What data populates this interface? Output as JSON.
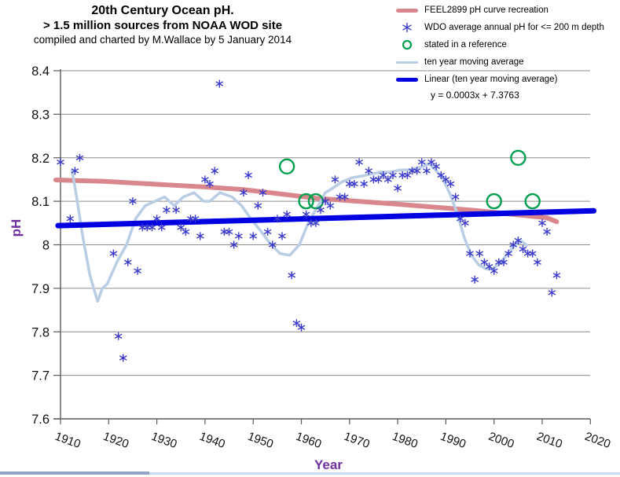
{
  "header": {
    "title_line1": "20th Century Ocean pH.",
    "title_line2": "> 1.5 million sources from NOAA WOD site",
    "title_line3": "compiled and charted by M.Wallace by 5 January 2014"
  },
  "legend": {
    "items": [
      {
        "label": "FEEL2899 pH curve recreation",
        "marker": "feel-line"
      },
      {
        "label": "WDO average annual pH for <= 200 m depth",
        "marker": "wdo-asterisk"
      },
      {
        "label": "stated in a reference",
        "marker": "reference-circle"
      },
      {
        "label": "ten year moving average",
        "marker": "ma-line"
      },
      {
        "label": "Linear (ten year moving average)",
        "marker": "trend-line"
      }
    ]
  },
  "colors": {
    "feel_line": "#D9878D",
    "scatter": "#3A3ACD",
    "reference_circle": "#00A04E",
    "moving_average": "#B9CDE5",
    "trend": "#0000E0",
    "axis_title": "#7030A0",
    "gridline": "#8C8C8C",
    "axis": "#5A5A5A",
    "bottom_bar_left": "#8FA5C2",
    "bottom_bar_right": "#C9DAF2"
  },
  "chart_data": {
    "type": "scatter",
    "title": "20th Century Ocean pH.",
    "xlabel": "Year",
    "ylabel": "pH",
    "xlim": [
      1905,
      2021
    ],
    "ylim": [
      7.6,
      8.4
    ],
    "grid": true,
    "legend_position": "top-right",
    "x_ticks": [
      "1910",
      "1920",
      "1930",
      "1940",
      "1950",
      "1960",
      "1970",
      "1980",
      "1990",
      "2000",
      "2010",
      "2020"
    ],
    "y_ticks": [
      "8.4",
      "8.3",
      "8.2",
      "8.1",
      "8",
      "7.9",
      "7.8",
      "7.7",
      "7.6"
    ],
    "trend_equation": "y = 0.0003x + 7.3763",
    "series": [
      {
        "id": "feel-curve",
        "name": "FEEL2899 pH curve recreation",
        "type": "line",
        "width": 6,
        "points": [
          [
            1909,
            8.149
          ],
          [
            1919,
            8.146
          ],
          [
            1930,
            8.139
          ],
          [
            1940,
            8.133
          ],
          [
            1948,
            8.127
          ],
          [
            1963,
            8.107
          ],
          [
            1979,
            8.094
          ],
          [
            1996,
            8.079
          ],
          [
            2011,
            8.062
          ],
          [
            2013,
            8.053
          ]
        ]
      },
      {
        "id": "wdo-scatter",
        "name": "WDO average annual pH for <= 200 m depth",
        "type": "scatter-asterisk",
        "points": [
          [
            1910,
            8.19
          ],
          [
            1912,
            8.06
          ],
          [
            1913,
            8.17
          ],
          [
            1914,
            8.2
          ],
          [
            1921,
            7.98
          ],
          [
            1922,
            7.79
          ],
          [
            1923,
            7.74
          ],
          [
            1924,
            7.96
          ],
          [
            1925,
            8.1
          ],
          [
            1926,
            7.94
          ],
          [
            1927,
            8.04
          ],
          [
            1928,
            8.04
          ],
          [
            1929,
            8.04
          ],
          [
            1930,
            8.06
          ],
          [
            1931,
            8.04
          ],
          [
            1932,
            8.08
          ],
          [
            1934,
            8.08
          ],
          [
            1935,
            8.04
          ],
          [
            1936,
            8.03
          ],
          [
            1937,
            8.06
          ],
          [
            1938,
            8.06
          ],
          [
            1939,
            8.02
          ],
          [
            1940,
            8.15
          ],
          [
            1941,
            8.14
          ],
          [
            1942,
            8.17
          ],
          [
            1943,
            8.37
          ],
          [
            1944,
            8.03
          ],
          [
            1945,
            8.03
          ],
          [
            1946,
            8.0
          ],
          [
            1947,
            8.02
          ],
          [
            1948,
            8.12
          ],
          [
            1949,
            8.16
          ],
          [
            1950,
            8.02
          ],
          [
            1951,
            8.09
          ],
          [
            1952,
            8.12
          ],
          [
            1953,
            8.03
          ],
          [
            1954,
            8.0
          ],
          [
            1955,
            8.06
          ],
          [
            1956,
            8.02
          ],
          [
            1957,
            8.07
          ],
          [
            1958,
            7.93
          ],
          [
            1959,
            7.82
          ],
          [
            1960,
            7.81
          ],
          [
            1961,
            8.07
          ],
          [
            1962,
            8.05
          ],
          [
            1963,
            8.05
          ],
          [
            1964,
            8.08
          ],
          [
            1965,
            8.1
          ],
          [
            1966,
            8.09
          ],
          [
            1967,
            8.15
          ],
          [
            1968,
            8.11
          ],
          [
            1969,
            8.11
          ],
          [
            1970,
            8.14
          ],
          [
            1971,
            8.14
          ],
          [
            1972,
            8.19
          ],
          [
            1973,
            8.14
          ],
          [
            1974,
            8.17
          ],
          [
            1975,
            8.15
          ],
          [
            1976,
            8.15
          ],
          [
            1977,
            8.16
          ],
          [
            1978,
            8.15
          ],
          [
            1979,
            8.16
          ],
          [
            1980,
            8.13
          ],
          [
            1981,
            8.16
          ],
          [
            1982,
            8.16
          ],
          [
            1983,
            8.17
          ],
          [
            1984,
            8.17
          ],
          [
            1985,
            8.19
          ],
          [
            1986,
            8.17
          ],
          [
            1987,
            8.19
          ],
          [
            1988,
            8.18
          ],
          [
            1989,
            8.16
          ],
          [
            1990,
            8.15
          ],
          [
            1991,
            8.14
          ],
          [
            1992,
            8.11
          ],
          [
            1993,
            8.06
          ],
          [
            1994,
            8.05
          ],
          [
            1995,
            7.98
          ],
          [
            1996,
            7.92
          ],
          [
            1997,
            7.98
          ],
          [
            1998,
            7.96
          ],
          [
            1999,
            7.95
          ],
          [
            2000,
            7.94
          ],
          [
            2001,
            7.96
          ],
          [
            2002,
            7.96
          ],
          [
            2003,
            7.98
          ],
          [
            2004,
            8.0
          ],
          [
            2005,
            8.01
          ],
          [
            2006,
            7.99
          ],
          [
            2007,
            7.98
          ],
          [
            2008,
            7.98
          ],
          [
            2009,
            7.96
          ],
          [
            2010,
            8.05
          ],
          [
            2011,
            8.03
          ],
          [
            2012,
            7.89
          ],
          [
            2013,
            7.93
          ]
        ]
      },
      {
        "id": "reference-circles",
        "name": "stated in a reference",
        "type": "scatter-circle",
        "points": [
          [
            1957,
            8.18
          ],
          [
            1961,
            8.1
          ],
          [
            1963,
            8.1
          ],
          [
            2000,
            8.1
          ],
          [
            2005,
            8.2
          ],
          [
            2008,
            8.1
          ]
        ]
      },
      {
        "id": "moving-average",
        "name": "ten year moving average",
        "type": "line",
        "width": 3.5,
        "points": [
          [
            1912.4,
            8.17
          ],
          [
            1913.2,
            8.12
          ],
          [
            1914.6,
            8.02
          ],
          [
            1916.1,
            7.93
          ],
          [
            1917.7,
            7.87
          ],
          [
            1918.7,
            7.9
          ],
          [
            1919.7,
            7.91
          ],
          [
            1921.7,
            7.96
          ],
          [
            1923.7,
            8.0
          ],
          [
            1925.6,
            8.06
          ],
          [
            1927.6,
            8.09
          ],
          [
            1929.6,
            8.1
          ],
          [
            1931.6,
            8.11
          ],
          [
            1933.6,
            8.09
          ],
          [
            1935.5,
            8.11
          ],
          [
            1937.7,
            8.12
          ],
          [
            1939.7,
            8.1
          ],
          [
            1941.0,
            8.1
          ],
          [
            1943.1,
            8.12
          ],
          [
            1945.6,
            8.11
          ],
          [
            1947.6,
            8.09
          ],
          [
            1949.5,
            8.06
          ],
          [
            1951.7,
            8.03
          ],
          [
            1953.7,
            8.0
          ],
          [
            1955.6,
            7.98
          ],
          [
            1957.6,
            7.976
          ],
          [
            1959.6,
            8.0
          ],
          [
            1961.6,
            8.055
          ],
          [
            1963.5,
            8.09
          ],
          [
            1965.0,
            8.12
          ],
          [
            1966.5,
            8.13
          ],
          [
            1968.5,
            8.145
          ],
          [
            1970.5,
            8.154
          ],
          [
            1972.6,
            8.158
          ],
          [
            1974.6,
            8.163
          ],
          [
            1976.6,
            8.167
          ],
          [
            1978.5,
            8.167
          ],
          [
            1980.5,
            8.172
          ],
          [
            1982.5,
            8.172
          ],
          [
            1984.0,
            8.177
          ],
          [
            1985.5,
            8.181
          ],
          [
            1986.5,
            8.186
          ],
          [
            1987.9,
            8.172
          ],
          [
            1989.4,
            8.151
          ],
          [
            1990.9,
            8.116
          ],
          [
            1992.4,
            8.071
          ],
          [
            1993.8,
            8.017
          ],
          [
            1995.3,
            7.976
          ],
          [
            1996.8,
            7.954
          ],
          [
            1998.3,
            7.945
          ],
          [
            1999.8,
            7.945
          ],
          [
            2001.3,
            7.959
          ],
          [
            2002.8,
            7.979
          ],
          [
            2004.3,
            7.999
          ],
          [
            2005.8,
            8.008
          ],
          [
            2006.8,
            7.999
          ]
        ]
      },
      {
        "id": "linear-trend",
        "name": "Linear (ten year moving average)",
        "type": "line",
        "width": 7,
        "points": [
          [
            1909.5,
            8.044
          ],
          [
            2020.7,
            8.078
          ]
        ]
      }
    ]
  }
}
